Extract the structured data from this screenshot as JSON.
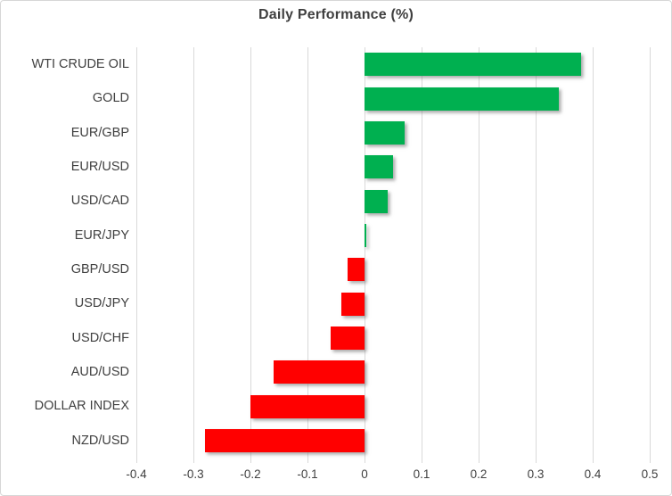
{
  "chart_data": {
    "type": "bar",
    "orientation": "horizontal",
    "title": "Daily Performance (%)",
    "categories": [
      "WTI CRUDE OIL",
      "GOLD",
      "EUR/GBP",
      "EUR/USD",
      "USD/CAD",
      "EUR/JPY",
      "GBP/USD",
      "USD/JPY",
      "USD/CHF",
      "AUD/USD",
      "DOLLAR INDEX",
      "NZD/USD"
    ],
    "values": [
      0.38,
      0.34,
      0.07,
      0.05,
      0.04,
      0.0,
      -0.03,
      -0.04,
      -0.06,
      -0.16,
      -0.2,
      -0.28
    ],
    "xlabel": "",
    "ylabel": "",
    "xlim": [
      -0.4,
      0.5
    ],
    "xtick_interval": 0.1,
    "xtick_labels": [
      "-0.4",
      "-0.3",
      "-0.2",
      "-0.1",
      "0",
      "0.1",
      "0.2",
      "0.3",
      "0.4",
      "0.5"
    ],
    "grid": "vertical-only",
    "legend": "none",
    "colors": {
      "positive": "#00b050",
      "negative": "#ff0000",
      "gridline": "#d9d9d9",
      "axis_text": "#404040",
      "title_text": "#3f3f3f",
      "background": "#ffffff",
      "border": "#d7d7d7"
    }
  }
}
